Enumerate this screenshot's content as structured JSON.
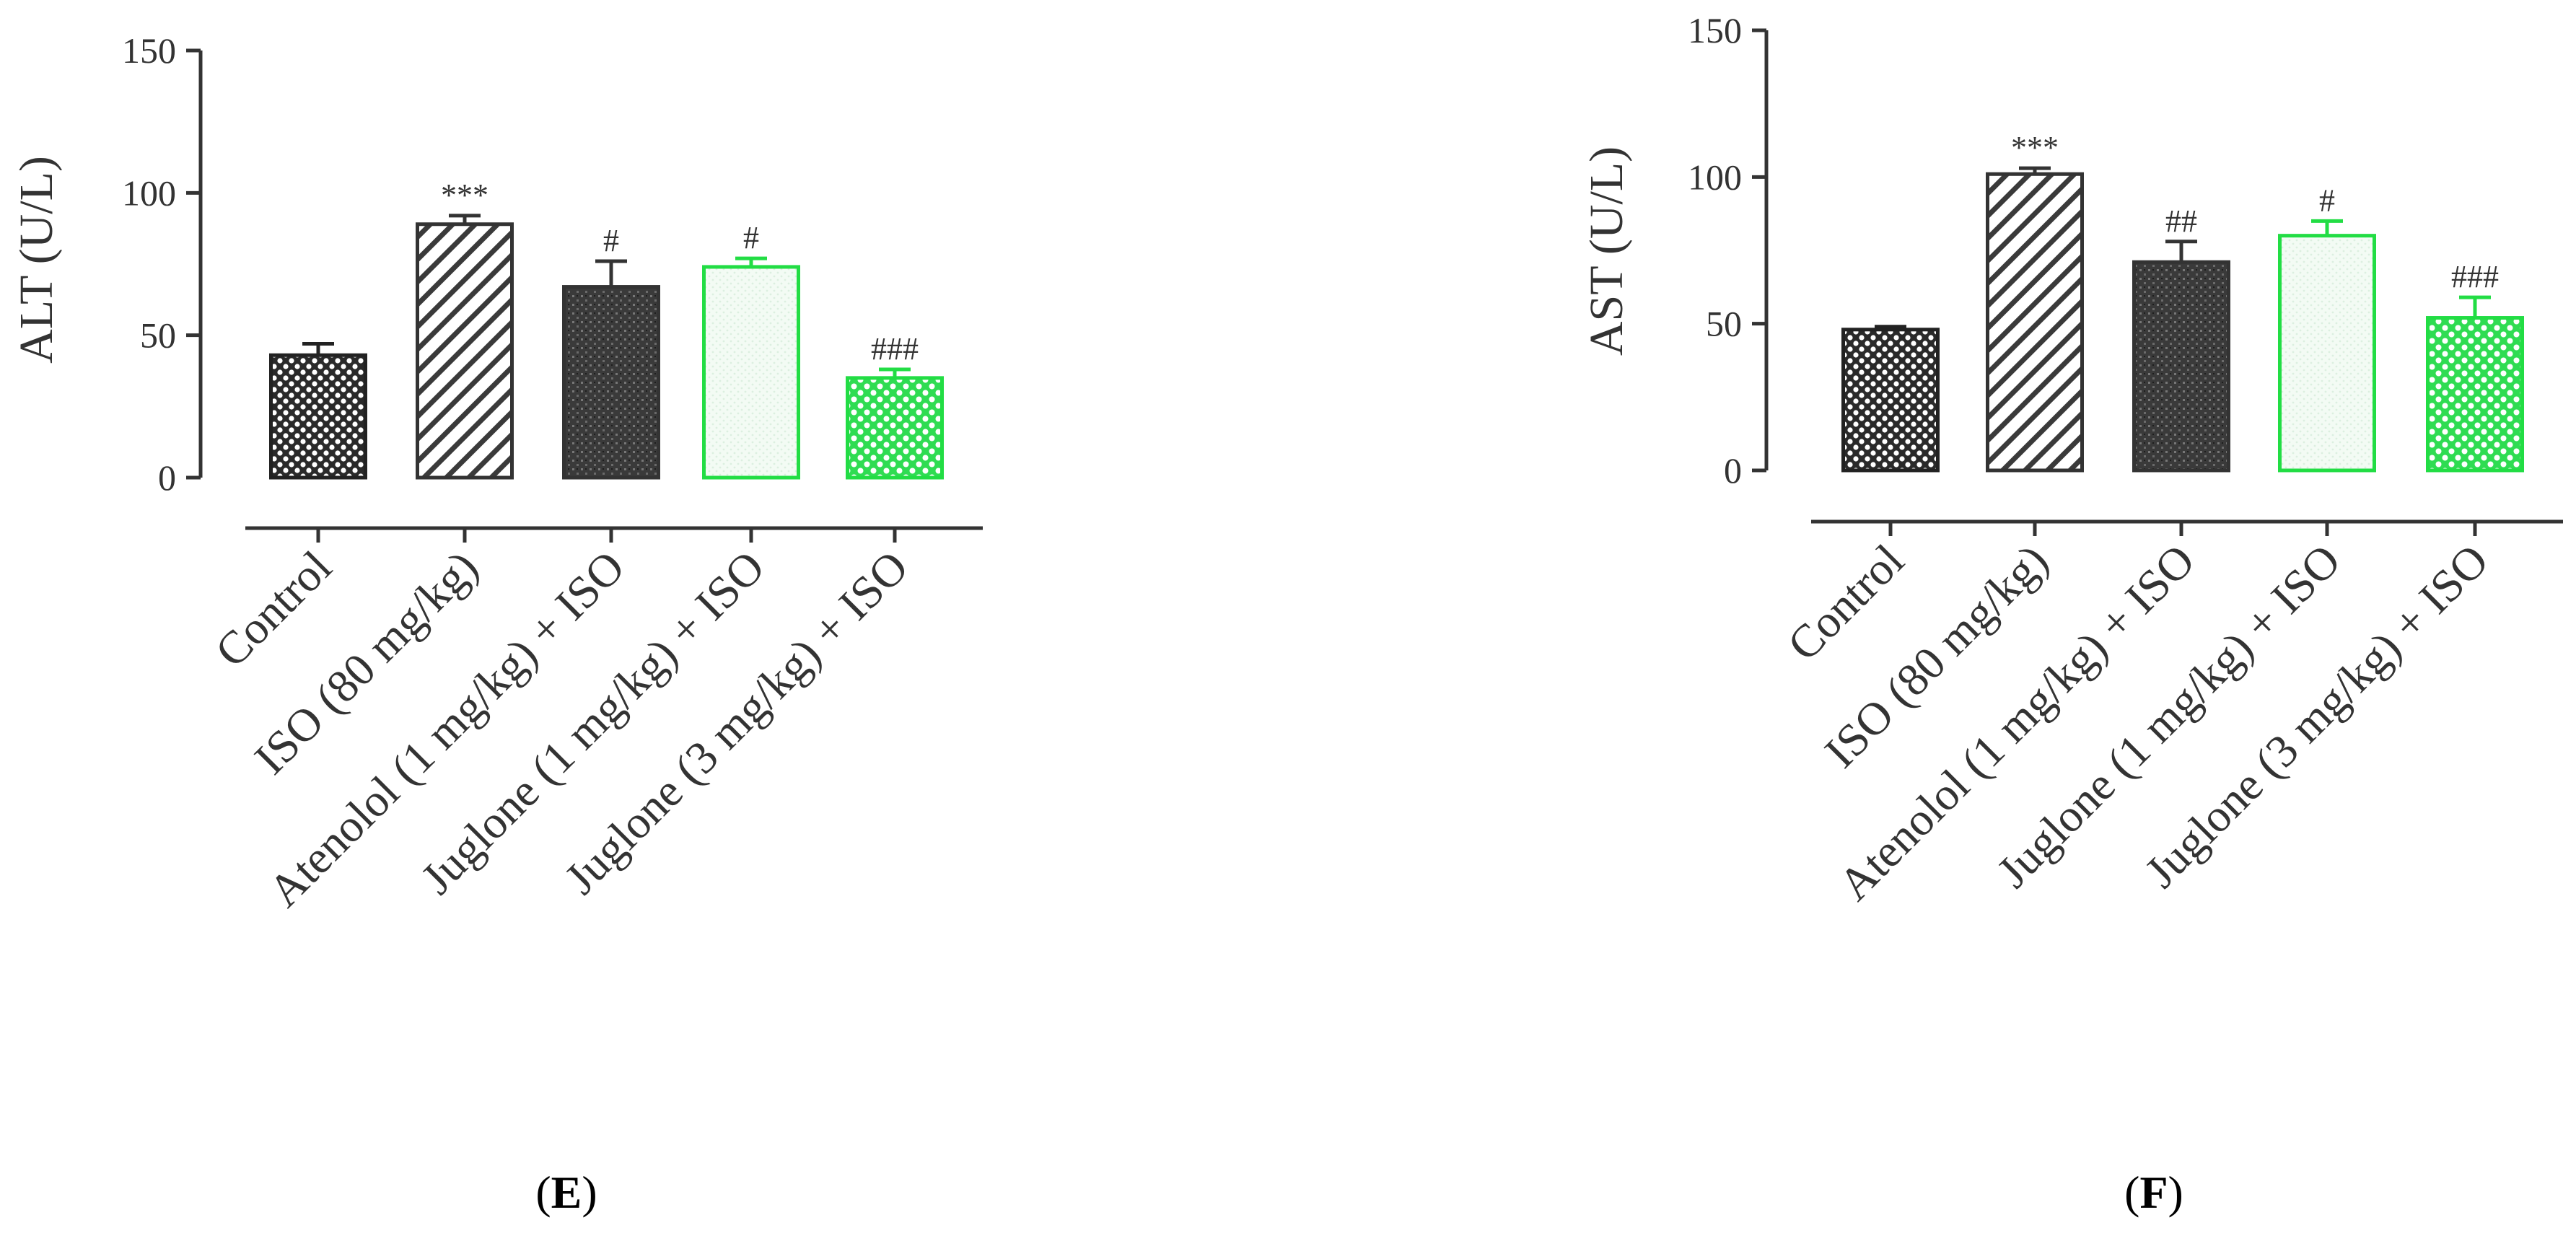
{
  "panels": [
    {
      "label_open": "(",
      "label_letter": "E",
      "label_close": ")"
    },
    {
      "label_open": "(",
      "label_letter": "F",
      "label_close": ")"
    }
  ],
  "series_styles": [
    {
      "pattern": "dots",
      "stroke": "#222222",
      "fill": "#2a2a2a"
    },
    {
      "pattern": "hatch",
      "stroke": "#333333",
      "fill": "#ffffff"
    },
    {
      "pattern": "grain",
      "stroke": "#333333",
      "fill": "#3a3a3a"
    },
    {
      "pattern": "light",
      "stroke": "#22dd44",
      "fill": "#eef9ef"
    },
    {
      "pattern": "green-dots",
      "stroke": "#22dd44",
      "fill": "#33dd55"
    }
  ],
  "chart_data": [
    {
      "type": "bar",
      "ylabel": "ALT (U/L)",
      "ylim": [
        0,
        150
      ],
      "yticks": [
        "0",
        "50",
        "100",
        "150"
      ],
      "categories": [
        "Control",
        "ISO (80 mg/kg)",
        "Atenolol (1 mg/kg) + ISO",
        "Juglone (1 mg/kg) + ISO",
        "Juglone (3 mg/kg) + ISO"
      ],
      "values": [
        43,
        89,
        67,
        74,
        35
      ],
      "errors": [
        4,
        3,
        9,
        3,
        3
      ],
      "annotations": [
        "",
        "***",
        "#",
        "#",
        "###"
      ]
    },
    {
      "type": "bar",
      "ylabel": "AST (U/L)",
      "ylim": [
        0,
        150
      ],
      "yticks": [
        "0",
        "50",
        "100",
        "150"
      ],
      "categories": [
        "Control",
        "ISO (80 mg/kg)",
        "Atenolol (1 mg/kg) + ISO",
        "Juglone (1 mg/kg) + ISO",
        "Juglone (3 mg/kg) + ISO"
      ],
      "values": [
        48,
        101,
        71,
        80,
        52
      ],
      "errors": [
        1,
        2,
        7,
        5,
        7
      ],
      "annotations": [
        "",
        "***",
        "##",
        "#",
        "###"
      ]
    }
  ]
}
